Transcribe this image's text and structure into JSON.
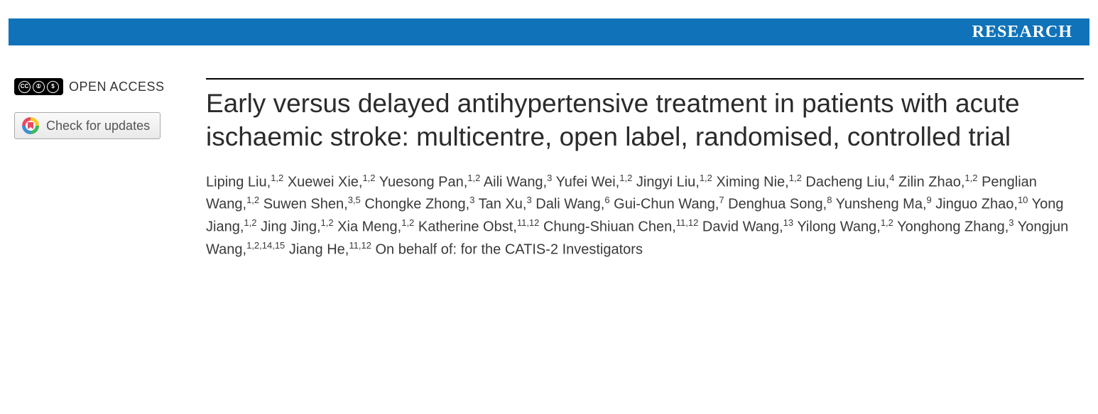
{
  "colors": {
    "banner_bg": "#1073b9",
    "banner_text": "#ffffff",
    "title_text": "#2b2b2b",
    "authors_text": "#3a3a3a",
    "rule": "#000000",
    "page_bg": "#ffffff"
  },
  "banner": {
    "label": "RESEARCH"
  },
  "sidebar": {
    "cc_glyphs": [
      "CC",
      "①",
      "$"
    ],
    "open_access_label": "OPEN ACCESS",
    "updates_label": "Check for updates"
  },
  "article": {
    "title": "Early versus delayed antihypertensive treatment in patients with acute ischaemic stroke: multicentre, open label, randomised, controlled trial",
    "authors": [
      {
        "name": "Liping Liu",
        "affil": "1,2"
      },
      {
        "name": "Xuewei Xie",
        "affil": "1,2"
      },
      {
        "name": "Yuesong Pan",
        "affil": "1,2"
      },
      {
        "name": "Aili Wang",
        "affil": "3"
      },
      {
        "name": "Yufei Wei",
        "affil": "1,2"
      },
      {
        "name": "Jingyi Liu",
        "affil": "1,2"
      },
      {
        "name": "Ximing Nie",
        "affil": "1,2"
      },
      {
        "name": "Dacheng Liu",
        "affil": "4"
      },
      {
        "name": "Zilin Zhao",
        "affil": "1,2"
      },
      {
        "name": "Penglian Wang",
        "affil": "1,2"
      },
      {
        "name": "Suwen Shen",
        "affil": "3,5"
      },
      {
        "name": "Chongke Zhong",
        "affil": "3"
      },
      {
        "name": "Tan Xu",
        "affil": "3"
      },
      {
        "name": "Dali Wang",
        "affil": "6"
      },
      {
        "name": "Gui-Chun Wang",
        "affil": "7"
      },
      {
        "name": "Denghua Song",
        "affil": "8"
      },
      {
        "name": "Yunsheng Ma",
        "affil": "9"
      },
      {
        "name": "Jinguo Zhao",
        "affil": "10"
      },
      {
        "name": "Yong Jiang",
        "affil": "1,2"
      },
      {
        "name": "Jing Jing",
        "affil": "1,2"
      },
      {
        "name": "Xia Meng",
        "affil": "1,2"
      },
      {
        "name": "Katherine Obst",
        "affil": "11,12"
      },
      {
        "name": "Chung-Shiuan Chen",
        "affil": "11,12"
      },
      {
        "name": "David Wang",
        "affil": "13"
      },
      {
        "name": "Yilong Wang",
        "affil": "1,2"
      },
      {
        "name": "Yonghong Zhang",
        "affil": "3"
      },
      {
        "name": "Yongjun Wang",
        "affil": "1,2,14,15"
      },
      {
        "name": "Jiang He",
        "affil": "11,12"
      }
    ],
    "group_statement": "On behalf of: for the CATIS-2 Investigators"
  }
}
